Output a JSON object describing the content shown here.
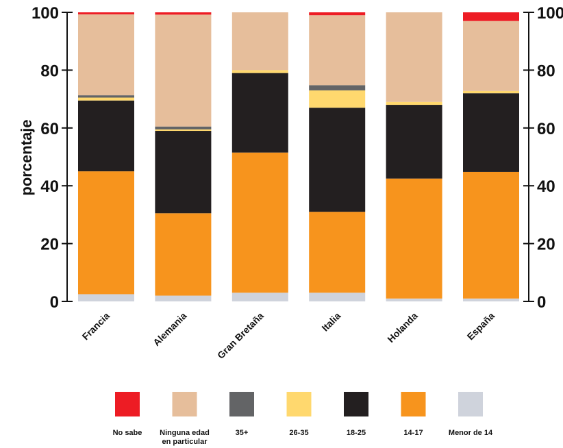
{
  "chart_data": {
    "type": "bar",
    "stacked": true,
    "ylabel": "porcentaje",
    "ylim": [
      0,
      100
    ],
    "yticks": [
      0,
      20,
      40,
      60,
      80,
      100
    ],
    "categories": [
      "Francia",
      "Alemania",
      "Gran Bretaña",
      "Italia",
      "Holanda",
      "España"
    ],
    "series": [
      {
        "name": "Menor de 14",
        "color": "#cfd3dc",
        "values": [
          2.5,
          2,
          3,
          3,
          1,
          1
        ]
      },
      {
        "name": "14-17",
        "color": "#f7941d",
        "values": [
          42.5,
          28.5,
          48.5,
          28,
          41.5,
          43.8
        ]
      },
      {
        "name": "18-25",
        "color": "#231f20",
        "values": [
          24.5,
          28.5,
          27.5,
          36,
          25.5,
          27.2
        ]
      },
      {
        "name": "26-35",
        "color": "#ffd86e",
        "values": [
          1,
          0.5,
          1,
          6,
          1,
          0.8
        ]
      },
      {
        "name": "35+",
        "color": "#636466",
        "values": [
          0.8,
          1,
          0,
          1.8,
          0,
          0
        ]
      },
      {
        "name": "Ninguna edad en particular",
        "color": "#e6be9b",
        "values": [
          28,
          38.7,
          20,
          24.2,
          31,
          24.2
        ]
      },
      {
        "name": "No sabe",
        "color": "#ed1c24",
        "values": [
          0.7,
          0.8,
          0,
          1,
          0,
          3
        ]
      }
    ],
    "legend_order": [
      "No sabe",
      "Ninguna edad en particular",
      "35+",
      "26-35",
      "18-25",
      "14-17",
      "Menor de 14"
    ],
    "legend_labels": {
      "Ninguna edad en particular": [
        "Ninguna edad",
        "en particular"
      ]
    },
    "legend_position": "bottom",
    "grid": false
  }
}
